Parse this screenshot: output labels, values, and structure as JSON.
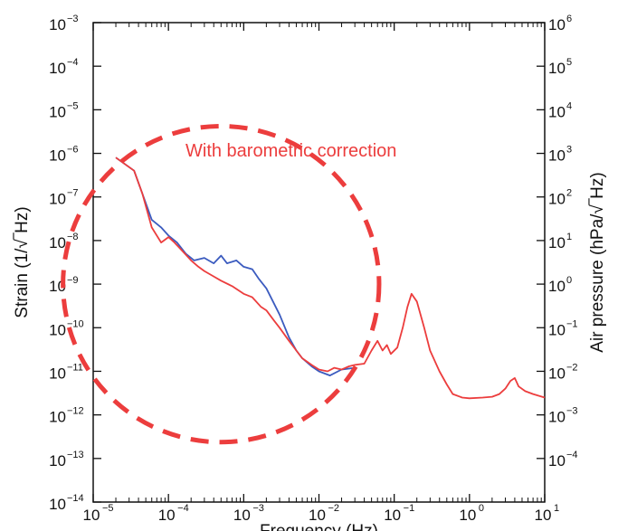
{
  "chart_data": {
    "type": "line",
    "title": "",
    "xlabel": "Frequency  (Hz)",
    "ylabel_left": "Strain  (1/√‾Hz)",
    "ylabel_right": "Air pressure  (hPa/√‾Hz)",
    "x_scale": "log",
    "y_scale": "log",
    "xlim": [
      1e-05,
      10
    ],
    "ylim_left": [
      1e-14,
      0.001
    ],
    "ylim_right": [
      1e-05,
      1000000.0
    ],
    "x_ticks": [
      {
        "base": "10",
        "exp": "−5",
        "value": 1e-05
      },
      {
        "base": "10",
        "exp": "−4",
        "value": 0.0001
      },
      {
        "base": "10",
        "exp": "−3",
        "value": 0.001
      },
      {
        "base": "10",
        "exp": "−2",
        "value": 0.01
      },
      {
        "base": "10",
        "exp": "−1",
        "value": 0.1
      },
      {
        "base": "10",
        "exp": "0",
        "value": 1
      },
      {
        "base": "10",
        "exp": "1",
        "value": 10
      }
    ],
    "y_ticks_left": [
      {
        "base": "10",
        "exp": "−3",
        "value": 0.001
      },
      {
        "base": "10",
        "exp": "−4",
        "value": 0.0001
      },
      {
        "base": "10",
        "exp": "−5",
        "value": 1e-05
      },
      {
        "base": "10",
        "exp": "−6",
        "value": 1e-06
      },
      {
        "base": "10",
        "exp": "−7",
        "value": 1e-07
      },
      {
        "base": "10",
        "exp": "−8",
        "value": 1e-08
      },
      {
        "base": "10",
        "exp": "−9",
        "value": 1e-09
      },
      {
        "base": "10",
        "exp": "−10",
        "value": 1e-10
      },
      {
        "base": "10",
        "exp": "−11",
        "value": 1e-11
      },
      {
        "base": "10",
        "exp": "−12",
        "value": 1e-12
      },
      {
        "base": "10",
        "exp": "−13",
        "value": 1e-13
      },
      {
        "base": "10",
        "exp": "−14",
        "value": 1e-14
      }
    ],
    "y_ticks_right": [
      {
        "base": "10",
        "exp": "6",
        "value": 1000000.0
      },
      {
        "base": "10",
        "exp": "5",
        "value": 100000.0
      },
      {
        "base": "10",
        "exp": "4",
        "value": 10000.0
      },
      {
        "base": "10",
        "exp": "3",
        "value": 1000.0
      },
      {
        "base": "10",
        "exp": "2",
        "value": 100.0
      },
      {
        "base": "10",
        "exp": "1",
        "value": 10.0
      },
      {
        "base": "10",
        "exp": "0",
        "value": 1
      },
      {
        "base": "10",
        "exp": "−1",
        "value": 0.1
      },
      {
        "base": "10",
        "exp": "−2",
        "value": 0.01
      },
      {
        "base": "10",
        "exp": "−3",
        "value": 0.001
      },
      {
        "base": "10",
        "exp": "−4",
        "value": 0.0001
      }
    ],
    "series": [
      {
        "color": "#3b5bbf",
        "points": [
          [
            2e-05,
            8e-07
          ],
          [
            3.5e-05,
            4e-07
          ],
          [
            4.5e-05,
            1.2e-07
          ],
          [
            6e-05,
            3e-08
          ],
          [
            8e-05,
            2e-08
          ],
          [
            0.0001,
            1.3e-08
          ],
          [
            0.00013,
            9e-09
          ],
          [
            0.00017,
            5e-09
          ],
          [
            0.00022,
            3.5e-09
          ],
          [
            0.0003,
            4e-09
          ],
          [
            0.0004,
            3e-09
          ],
          [
            0.0005,
            4.5e-09
          ],
          [
            0.0006,
            3e-09
          ],
          [
            0.0008,
            3.5e-09
          ],
          [
            0.001,
            2.5e-09
          ],
          [
            0.0013,
            2.2e-09
          ],
          [
            0.0016,
            1.3e-09
          ],
          [
            0.002,
            8e-10
          ],
          [
            0.003,
            2e-10
          ],
          [
            0.004,
            6e-11
          ],
          [
            0.005,
            3e-11
          ],
          [
            0.006,
            2e-11
          ],
          [
            0.008,
            1.3e-11
          ],
          [
            0.01,
            1e-11
          ],
          [
            0.014,
            8e-12
          ],
          [
            0.02,
            1.1e-11
          ],
          [
            0.03,
            1.2e-11
          ]
        ]
      },
      {
        "color": "#ec3d3d",
        "points": [
          [
            2e-05,
            8e-07
          ],
          [
            3.5e-05,
            4e-07
          ],
          [
            4.5e-05,
            1.2e-07
          ],
          [
            6e-05,
            2e-08
          ],
          [
            8e-05,
            9e-09
          ],
          [
            0.0001,
            1.2e-08
          ],
          [
            0.00012,
            9e-09
          ],
          [
            0.00015,
            6e-09
          ],
          [
            0.0002,
            3.5e-09
          ],
          [
            0.00025,
            2.5e-09
          ],
          [
            0.0003,
            2e-09
          ],
          [
            0.0004,
            1.5e-09
          ],
          [
            0.0005,
            1.2e-09
          ],
          [
            0.0007,
            9e-10
          ],
          [
            0.001,
            6e-10
          ],
          [
            0.0013,
            5e-10
          ],
          [
            0.0017,
            3e-10
          ],
          [
            0.002,
            2.5e-10
          ],
          [
            0.0025,
            1.5e-10
          ],
          [
            0.003,
            1e-10
          ],
          [
            0.004,
            5e-11
          ],
          [
            0.005,
            3e-11
          ],
          [
            0.006,
            2e-11
          ],
          [
            0.008,
            1.4e-11
          ],
          [
            0.01,
            1.1e-11
          ],
          [
            0.013,
            1e-11
          ],
          [
            0.016,
            1.2e-11
          ],
          [
            0.02,
            1.1e-11
          ],
          [
            0.025,
            1.3e-11
          ],
          [
            0.03,
            1.4e-11
          ],
          [
            0.04,
            1.5e-11
          ],
          [
            0.05,
            3e-11
          ],
          [
            0.06,
            5e-11
          ],
          [
            0.07,
            3e-11
          ],
          [
            0.08,
            4e-11
          ],
          [
            0.09,
            2.5e-11
          ],
          [
            0.11,
            3.5e-11
          ],
          [
            0.13,
            1e-10
          ],
          [
            0.15,
            3e-10
          ],
          [
            0.17,
            6e-10
          ],
          [
            0.2,
            4e-10
          ],
          [
            0.25,
            1e-10
          ],
          [
            0.3,
            3e-11
          ],
          [
            0.4,
            1e-11
          ],
          [
            0.5,
            5e-12
          ],
          [
            0.6,
            3e-12
          ],
          [
            0.8,
            2.5e-12
          ],
          [
            1,
            2.4e-12
          ],
          [
            1.5,
            2.5e-12
          ],
          [
            2,
            2.6e-12
          ],
          [
            2.5,
            3e-12
          ],
          [
            3,
            4e-12
          ],
          [
            3.5,
            6e-12
          ],
          [
            4,
            7e-12
          ],
          [
            4.5,
            4.5e-12
          ],
          [
            5.5,
            3.5e-12
          ],
          [
            7,
            3e-12
          ],
          [
            10,
            2.5e-12
          ]
        ]
      }
    ],
    "annotations": {
      "correction_label": "With barometric correction",
      "correction_color": "#ec3d3d",
      "circle": {
        "center_x": 0.0005,
        "center_y": 1e-09,
        "radius_decades": 2.1
      }
    }
  }
}
